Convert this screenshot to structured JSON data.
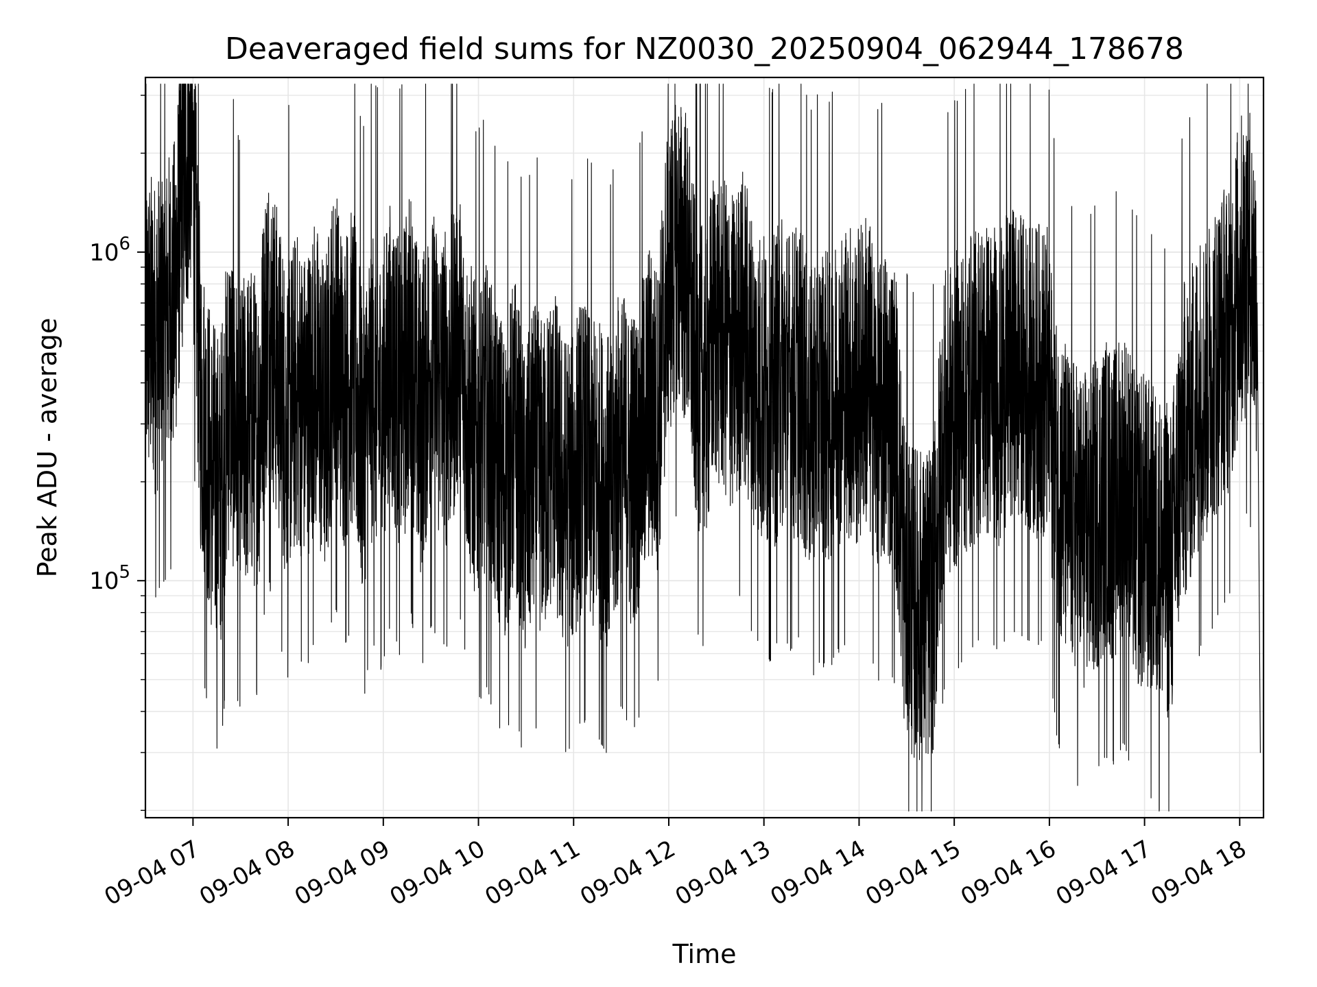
{
  "chart_data": {
    "type": "line",
    "title": "Deaveraged field sums for NZ0030_20250904_062944_178678",
    "xlabel": "Time",
    "ylabel": "Peak ADU - average",
    "y_scale": "log",
    "grid": true,
    "line_color": "#000000",
    "grid_color": "#e6e6e6",
    "x_range": [
      "09-04 06:30",
      "09-04 18:15"
    ],
    "y_range": [
      19000,
      3400000
    ],
    "x_ticks": [
      "09-04 07",
      "09-04 08",
      "09-04 09",
      "09-04 10",
      "09-04 11",
      "09-04 12",
      "09-04 13",
      "09-04 14",
      "09-04 15",
      "09-04 16",
      "09-04 17",
      "09-04 18"
    ],
    "y_ticks": [
      {
        "value": 100000,
        "base": "10",
        "exp": "5"
      },
      {
        "value": 1000000,
        "base": "10",
        "exp": "6"
      }
    ],
    "series": [
      {
        "x": [
          "06:30",
          "06:36",
          "06:42",
          "06:48",
          "06:53",
          "06:59",
          "07:05",
          "07:11",
          "07:17",
          "07:23",
          "07:29",
          "07:35",
          "07:41",
          "07:47",
          "07:53",
          "07:59",
          "08:05",
          "08:11",
          "08:17",
          "08:23",
          "08:29",
          "08:35",
          "08:41",
          "08:47",
          "08:53",
          "08:59",
          "09:05",
          "09:11",
          "09:17",
          "09:23",
          "09:29",
          "09:35",
          "09:41",
          "09:47",
          "09:53",
          "09:59",
          "10:05",
          "10:11",
          "10:17",
          "10:23",
          "10:29",
          "10:35",
          "10:41",
          "10:47",
          "10:53",
          "10:59",
          "11:05",
          "11:11",
          "11:17",
          "11:23",
          "11:29",
          "11:35",
          "11:41",
          "11:47",
          "11:53",
          "11:59",
          "12:05",
          "12:11",
          "12:17",
          "12:23",
          "12:29",
          "12:35",
          "12:41",
          "12:47",
          "12:53",
          "12:59",
          "13:05",
          "13:11",
          "13:17",
          "13:23",
          "13:29",
          "13:35",
          "13:41",
          "13:47",
          "13:53",
          "13:59",
          "14:05",
          "14:11",
          "14:17",
          "14:23",
          "14:29",
          "14:35",
          "14:41",
          "14:47",
          "14:53",
          "14:59",
          "15:05",
          "15:11",
          "15:17",
          "15:23",
          "15:29",
          "15:35",
          "15:41",
          "15:47",
          "15:53",
          "15:59",
          "16:05",
          "16:11",
          "16:17",
          "16:23",
          "16:29",
          "16:35",
          "16:41",
          "16:47",
          "16:53",
          "16:59",
          "17:05",
          "17:11",
          "17:17",
          "17:23",
          "17:29",
          "17:35",
          "17:41",
          "17:47",
          "17:53",
          "17:59",
          "18:05",
          "18:11",
          "18:13"
        ],
        "y": [
          600000,
          550000,
          620000,
          700000,
          1500000,
          2500000,
          350000,
          220000,
          180000,
          400000,
          250000,
          300000,
          280000,
          650000,
          450000,
          300000,
          380000,
          330000,
          420000,
          300000,
          550000,
          380000,
          450000,
          260000,
          400000,
          330000,
          480000,
          350000,
          520000,
          300000,
          450000,
          400000,
          380000,
          550000,
          330000,
          260000,
          300000,
          230000,
          200000,
          280000,
          160000,
          230000,
          200000,
          270000,
          180000,
          190000,
          240000,
          210000,
          200000,
          180000,
          260000,
          220000,
          230000,
          350000,
          300000,
          800000,
          1000000,
          900000,
          450000,
          380000,
          620000,
          550000,
          480000,
          600000,
          420000,
          380000,
          350000,
          450000,
          380000,
          420000,
          300000,
          350000,
          330000,
          380000,
          410000,
          380000,
          450000,
          300000,
          350000,
          300000,
          100000,
          85000,
          80000,
          90000,
          280000,
          320000,
          350000,
          380000,
          420000,
          400000,
          380000,
          450000,
          430000,
          410000,
          400000,
          390000,
          200000,
          170000,
          150000,
          140000,
          160000,
          180000,
          170000,
          200000,
          150000,
          140000,
          130000,
          120000,
          110000,
          250000,
          300000,
          380000,
          420000,
          500000,
          550000,
          800000,
          1000000,
          700000,
          30000
        ]
      }
    ]
  }
}
